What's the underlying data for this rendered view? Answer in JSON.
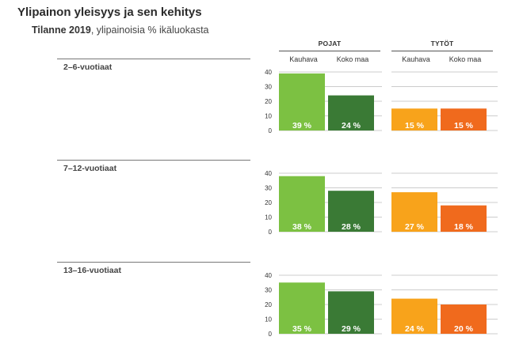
{
  "title": "Ylipainon yleisyys ja sen kehitys",
  "subtitle_bold": "Tilanne 2019",
  "subtitle_rest": ", ylipainoisia % ikäluokasta",
  "colors": {
    "pojat_kauhava": "#7cc142",
    "pojat_koko_maa": "#3a7a35",
    "tytot_kauhava": "#f8a31b",
    "tytot_koko_maa": "#f06a1d",
    "gridline": "#cccccc",
    "label_text": "#ffffff"
  },
  "chart_data": {
    "type": "bar",
    "ylim": [
      0,
      40
    ],
    "yticks": [
      "0",
      "10",
      "20",
      "30",
      "40"
    ],
    "groups": [
      {
        "name": "POJAT",
        "series": [
          "Kauhava",
          "Koko maa"
        ]
      },
      {
        "name": "TYTÖT",
        "series": [
          "Kauhava",
          "Koko maa"
        ]
      }
    ],
    "value_suffix": " %",
    "rows": [
      {
        "label": "2–6-vuotiaat",
        "values": [
          39,
          24,
          15,
          15
        ]
      },
      {
        "label": "7–12-vuotiaat",
        "values": [
          38,
          28,
          27,
          18
        ]
      },
      {
        "label": "13–16-vuotiaat",
        "values": [
          35,
          29,
          24,
          20
        ]
      }
    ]
  }
}
